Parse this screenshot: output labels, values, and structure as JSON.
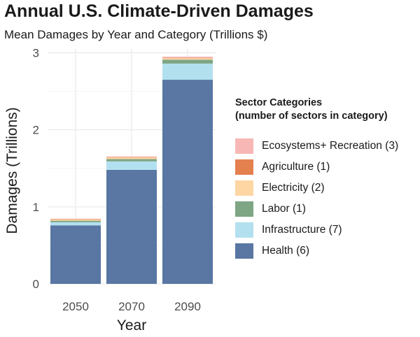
{
  "chart_data": {
    "type": "bar",
    "stacked": true,
    "title": "Annual U.S. Climate-Driven Damages",
    "subtitle": "Mean Damages by Year and Category (Trillions $)",
    "xlabel": "Year",
    "ylabel": "Damages (Trillions)",
    "categories": [
      "2050",
      "2070",
      "2090"
    ],
    "ylim": [
      0,
      3.05
    ],
    "yticks": [
      0,
      1,
      2,
      3
    ],
    "grid": true,
    "legend": {
      "title_line1": "Sector Categories",
      "title_line2": "(number of sectors in category)",
      "placement": "right"
    },
    "series": [
      {
        "name": "Health (6)",
        "color": "#5a76a3",
        "values": [
          0.76,
          1.48,
          2.65
        ]
      },
      {
        "name": "Infrastructure (7)",
        "color": "#b3e0ef",
        "values": [
          0.04,
          0.11,
          0.21
        ]
      },
      {
        "name": "Labor (1)",
        "color": "#7ea584",
        "values": [
          0.02,
          0.03,
          0.05
        ]
      },
      {
        "name": "Electricity (2)",
        "color": "#fdd6a4",
        "values": [
          0.015,
          0.02,
          0.02
        ]
      },
      {
        "name": "Agriculture (1)",
        "color": "#e5804f",
        "values": [
          0.005,
          0.005,
          0.005
        ]
      },
      {
        "name": "Ecosystems+ Recreation (3)",
        "color": "#f7b8b5",
        "values": [
          0.005,
          0.01,
          0.015
        ]
      }
    ]
  }
}
